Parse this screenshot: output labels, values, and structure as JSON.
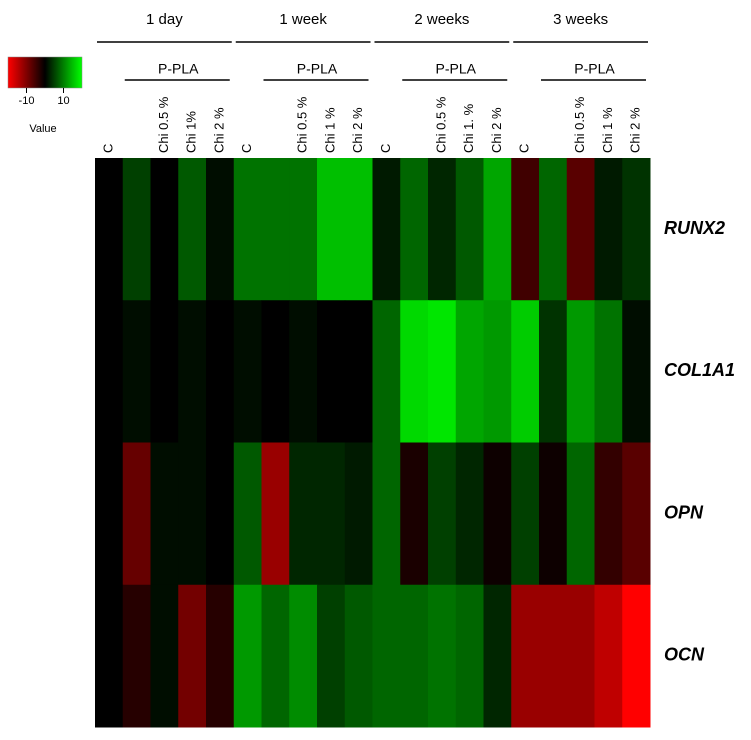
{
  "chart_data": {
    "type": "heatmap",
    "groups": [
      {
        "label": "1 day",
        "sub": "P-PLA"
      },
      {
        "label": "1 week",
        "sub": "P-PLA"
      },
      {
        "label": "2 weeks",
        "sub": "P-PLA"
      },
      {
        "label": "3 weeks",
        "sub": "P-PLA"
      }
    ],
    "x": [
      "C",
      null,
      "Chi 0.5 %",
      "Chi 1%",
      "Chi 2 %",
      "C",
      null,
      "Chi 0.5 %",
      "Chi 1 %",
      "Chi 2 %",
      "C",
      null,
      "Chi 0.5 %",
      "Chi 1. %",
      "Chi 2 %",
      "C",
      null,
      "Chi 0.5 %",
      "Chi 1 %",
      "Chi 2 %"
    ],
    "y": [
      "RUNX2",
      "COL1A1",
      "OPN",
      "OCN"
    ],
    "values": [
      [
        0,
        5,
        0,
        7,
        1,
        9,
        9,
        9,
        15,
        15,
        2,
        8,
        3,
        7,
        13,
        -5,
        8,
        -7,
        2,
        4
      ],
      [
        0,
        1,
        0,
        1,
        0,
        1,
        0,
        1,
        0,
        0,
        8,
        17,
        18,
        13,
        12,
        16,
        4,
        12,
        9,
        1
      ],
      [
        0,
        -8,
        1,
        1,
        0,
        7,
        -12,
        3,
        3,
        2,
        8,
        -2,
        5,
        3,
        -1,
        5,
        -1,
        8,
        -4,
        -7
      ],
      [
        0,
        -3,
        1,
        -9,
        -3,
        12,
        8,
        11,
        5,
        7,
        8,
        8,
        9,
        8,
        3,
        -12,
        -12,
        -12,
        -15,
        -20
      ]
    ],
    "zlim": [
      -20,
      20
    ],
    "colors": {
      "low": "#ff0000",
      "mid": "#000000",
      "high": "#00ff00"
    },
    "legend": {
      "title": "Value",
      "ticks": [
        -10,
        10
      ]
    }
  }
}
